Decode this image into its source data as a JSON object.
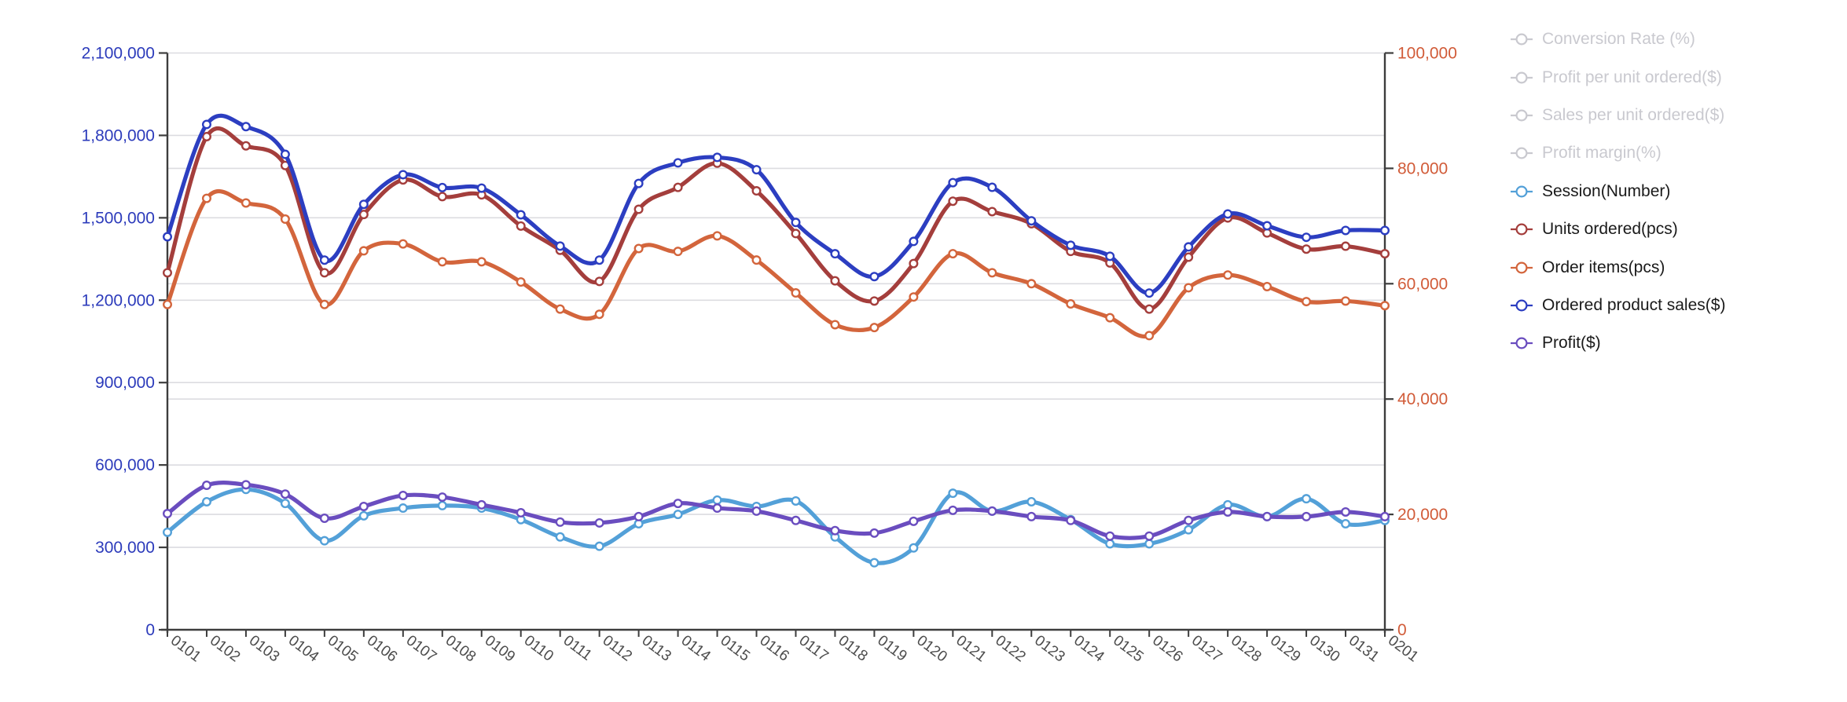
{
  "chart_data": {
    "type": "line",
    "smooth": true,
    "grid_on": true,
    "x_labels": [
      "0101",
      "0102",
      "0103",
      "0104",
      "0105",
      "0106",
      "0107",
      "0108",
      "0109",
      "0110",
      "0111",
      "0112",
      "0113",
      "0114",
      "0115",
      "0116",
      "0117",
      "0118",
      "0119",
      "0120",
      "0121",
      "0122",
      "0123",
      "0124",
      "0125",
      "0126",
      "0127",
      "0128",
      "0129",
      "0130",
      "0131",
      "0201"
    ],
    "left_axis": {
      "min": 0,
      "max": 2100000,
      "step": 300000,
      "tick_labels": [
        "0",
        "300,000",
        "600,000",
        "900,000",
        "1,200,000",
        "1,500,000",
        "1,800,000",
        "2,100,000"
      ],
      "color": "#2c3bbb"
    },
    "right_axis": {
      "min": 0,
      "max": 100000,
      "step": 20000,
      "tick_labels": [
        "0",
        "20,000",
        "40,000",
        "60,000",
        "80,000",
        "100,000"
      ],
      "color": "#d15b38"
    },
    "series": [
      {
        "name": "Session(Number)",
        "axis": "left",
        "color": "#53a0d8",
        "values": [
          355000,
          466000,
          511000,
          460000,
          324000,
          415000,
          443000,
          452000,
          443000,
          401000,
          338000,
          304000,
          386000,
          420000,
          472000,
          449000,
          469000,
          338000,
          244000,
          298000,
          497000,
          432000,
          466000,
          401000,
          313000,
          313000,
          364000,
          455000,
          412000,
          477000,
          386000,
          398000
        ]
      },
      {
        "name": "Units ordered(pcs)",
        "axis": "right",
        "color": "#a43e3c",
        "values": [
          61900,
          85500,
          83900,
          80500,
          61900,
          72000,
          78000,
          75100,
          75400,
          70000,
          65800,
          60400,
          72900,
          76700,
          80900,
          76100,
          68700,
          60500,
          57000,
          63500,
          74300,
          72500,
          70400,
          65600,
          63600,
          55600,
          64600,
          71400,
          68800,
          66000,
          66500,
          65200
        ]
      },
      {
        "name": "Order items(pcs)",
        "axis": "right",
        "color": "#d3653c",
        "values": [
          56400,
          74800,
          74000,
          71200,
          56400,
          65700,
          66900,
          63800,
          63800,
          60300,
          55600,
          54700,
          66100,
          65600,
          68300,
          64100,
          58400,
          52900,
          52400,
          57700,
          65200,
          61900,
          60000,
          56500,
          54100,
          51000,
          59300,
          61500,
          59500,
          56900,
          57000,
          56200
        ]
      },
      {
        "name": "Ordered product sales($)",
        "axis": "left",
        "color": "#2c3ec1",
        "values": [
          1431000,
          1840000,
          1832000,
          1731000,
          1346000,
          1549000,
          1657000,
          1610000,
          1608000,
          1511000,
          1397000,
          1346000,
          1625000,
          1700000,
          1720000,
          1675000,
          1483000,
          1369000,
          1286000,
          1414000,
          1628000,
          1611000,
          1489000,
          1400000,
          1360000,
          1226000,
          1394000,
          1514000,
          1471000,
          1429000,
          1454000,
          1454000
        ]
      },
      {
        "name": "Profit($)",
        "axis": "left",
        "color": "#6a4dbf",
        "values": [
          423000,
          526000,
          528000,
          494000,
          406000,
          449000,
          489000,
          483000,
          455000,
          426000,
          392000,
          389000,
          412000,
          460000,
          443000,
          432000,
          398000,
          361000,
          352000,
          395000,
          435000,
          432000,
          412000,
          398000,
          341000,
          341000,
          398000,
          429000,
          412000,
          412000,
          429000,
          412000
        ]
      }
    ],
    "legend": [
      {
        "label": "Conversion Rate (%)",
        "enabled": false
      },
      {
        "label": "Profit per unit ordered($)",
        "enabled": false
      },
      {
        "label": "Sales per unit ordered($)",
        "enabled": false
      },
      {
        "label": "Profit margin(%)",
        "enabled": false
      },
      {
        "label": "Session(Number)",
        "enabled": true,
        "color": "#53a0d8"
      },
      {
        "label": "Units ordered(pcs)",
        "enabled": true,
        "color": "#a43e3c"
      },
      {
        "label": "Order items(pcs)",
        "enabled": true,
        "color": "#d3653c"
      },
      {
        "label": "Ordered product sales($)",
        "enabled": true,
        "color": "#2c3ec1"
      },
      {
        "label": "Profit($)",
        "enabled": true,
        "color": "#6a4dbf"
      }
    ],
    "colors": {
      "grid_line": "#dcdce0",
      "axis_line": "#3d3d3d",
      "x_label": "#4c4c4c",
      "legend_text": "#1a1a1a",
      "legend_disabled": "#c9c9cf",
      "marker_fill": "#ffffff",
      "background": "#ffffff"
    }
  }
}
